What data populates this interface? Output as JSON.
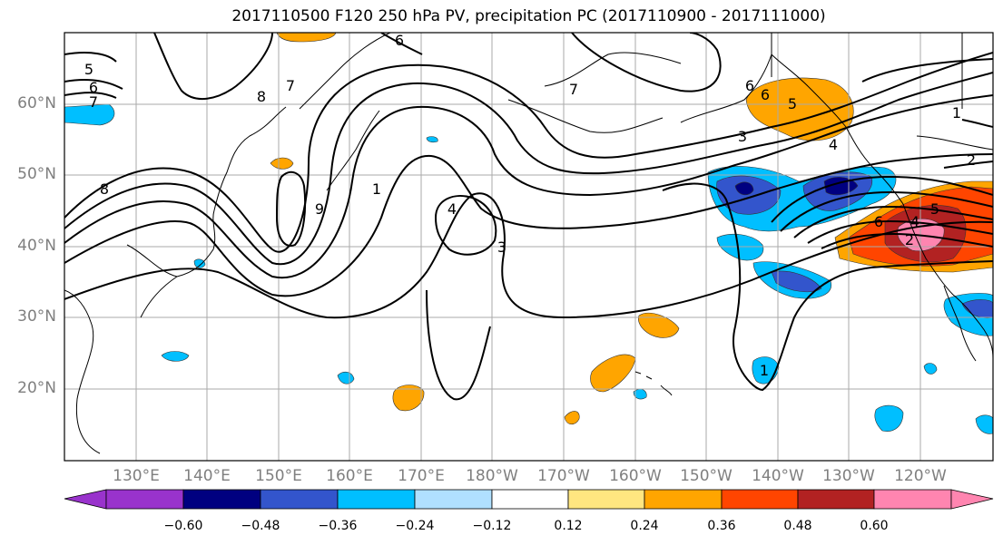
{
  "title": "2017110500 F120 250 hPa PV, precipitation PC (2017110900 - 2017111000)",
  "lat_labels": [
    "60°N",
    "50°N",
    "40°N",
    "30°N",
    "20°N"
  ],
  "lon_labels": [
    "130°E",
    "140°E",
    "150°E",
    "160°E",
    "170°E",
    "180°W",
    "170°W",
    "160°W",
    "150°W",
    "140°W",
    "130°W",
    "120°W"
  ],
  "contour_labels": [
    "5",
    "6",
    "7",
    "8",
    "6",
    "8",
    "7",
    "9",
    "1",
    "4",
    "3",
    "6",
    "7",
    "6",
    "5",
    "3",
    "4",
    "1",
    "2",
    "6",
    "4",
    "2",
    "5",
    "1"
  ],
  "colorbar": {
    "ticks": [
      "−0.60",
      "−0.48",
      "−0.36",
      "−0.24",
      "−0.12",
      "0.12",
      "0.24",
      "0.36",
      "0.48",
      "0.60"
    ],
    "colors": [
      "#9933cc",
      "#000080",
      "#3355cc",
      "#00bfff",
      "#b0e0ff",
      "#ffffff",
      "#ffe680",
      "#ffa500",
      "#ff4500",
      "#b22222",
      "#ff85b0"
    ]
  }
}
